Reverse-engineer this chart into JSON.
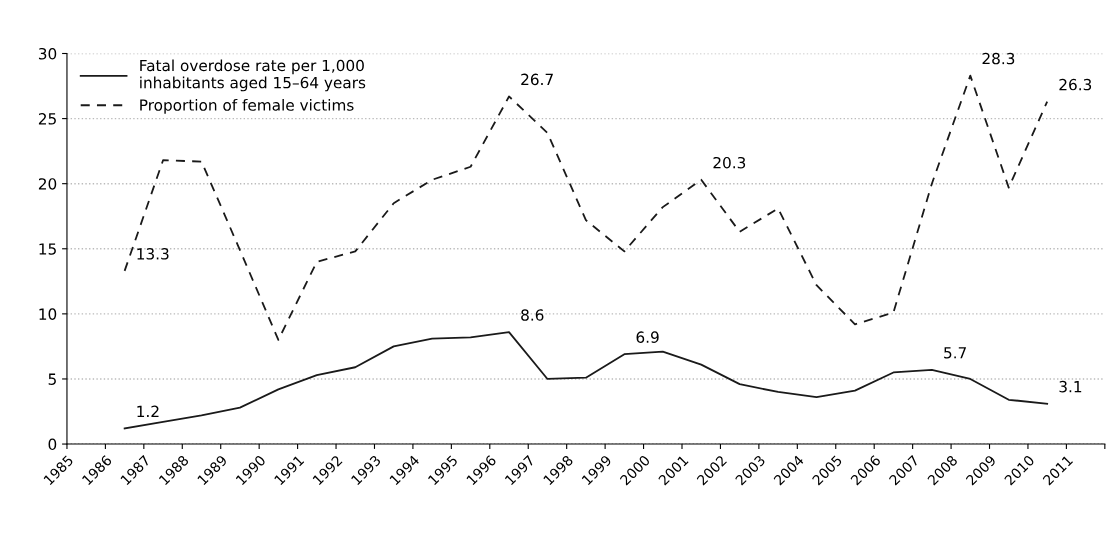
{
  "chart_data": {
    "type": "line",
    "x": [
      1986.5,
      1987.5,
      1988.5,
      1989.5,
      1990.5,
      1991.5,
      1992.5,
      1993.5,
      1994.5,
      1995.5,
      1996.5,
      1997.5,
      1998.5,
      1999.5,
      2000.5,
      2001.5,
      2002.5,
      2003.5,
      2004.5,
      2005.5,
      2006.5,
      2007.5,
      2008.5,
      2009.5,
      2010.5
    ],
    "series": [
      {
        "name": "Fatal overdose rate per 1,000\ninhabitants aged 15–64 years",
        "color": "#1a1a1a",
        "line_style": "solid",
        "values": [
          1.2,
          1.7,
          2.2,
          2.8,
          4.2,
          5.3,
          5.9,
          7.5,
          8.1,
          8.2,
          8.6,
          5.0,
          5.1,
          6.9,
          7.1,
          6.1,
          4.6,
          4.0,
          3.6,
          4.1,
          5.5,
          5.7,
          5.0,
          3.4,
          3.1
        ],
        "value_labels": [
          "1.2",
          null,
          null,
          null,
          null,
          null,
          null,
          null,
          null,
          null,
          "8.6",
          null,
          null,
          "6.9",
          null,
          null,
          null,
          null,
          null,
          null,
          null,
          "5.7",
          null,
          null,
          "3.1"
        ]
      },
      {
        "name": "Proportion of female victims",
        "color": "#1a1a1a",
        "line_style": "dashed",
        "values": [
          13.3,
          21.8,
          21.7,
          14.9,
          8.0,
          14.0,
          14.8,
          18.5,
          20.3,
          21.3,
          26.7,
          23.9,
          17.2,
          14.8,
          18.2,
          20.3,
          16.3,
          18.1,
          12.2,
          9.2,
          10.1,
          20.0,
          28.3,
          19.7,
          26.3
        ],
        "value_labels": [
          "13.3",
          null,
          null,
          null,
          null,
          null,
          null,
          null,
          null,
          null,
          "26.7",
          null,
          null,
          null,
          null,
          "20.3",
          null,
          null,
          null,
          null,
          null,
          null,
          "28.3",
          null,
          "26.3"
        ]
      }
    ],
    "xlim": [
      1985,
      2012
    ],
    "xticks": [
      1985,
      1986,
      1987,
      1988,
      1989,
      1990,
      1991,
      1992,
      1993,
      1994,
      1995,
      1996,
      1997,
      1998,
      1999,
      2000,
      2001,
      2002,
      2003,
      2004,
      2005,
      2006,
      2007,
      2008,
      2009,
      2010,
      2011,
      {
        "value": 2012,
        "label": null
      }
    ],
    "ylim": [
      0,
      30
    ],
    "yticks": [
      0,
      5,
      10,
      15,
      20,
      25,
      30
    ],
    "grid": "y",
    "legend": "top left"
  }
}
